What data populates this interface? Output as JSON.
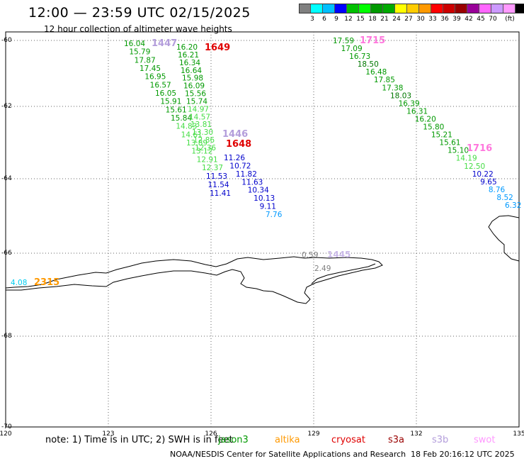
{
  "header": {
    "title": "12:00 — 23:59 UTC 02/15/2025",
    "subtitle": "12 hour collection of altimeter wave heights"
  },
  "colorbar": {
    "unit": "(ft)",
    "colors": [
      "#808080",
      "#00ffff",
      "#00bfff",
      "#0000ff",
      "#00c000",
      "#00ff00",
      "#009900",
      "#00aa00",
      "#ffff00",
      "#ffcc00",
      "#ff9900",
      "#ff0000",
      "#cc0000",
      "#990000",
      "#990099",
      "#ff66ff",
      "#cc99ff",
      "#ff99ff",
      "#000000"
    ],
    "labels": [
      "3",
      "6",
      "9",
      "12",
      "15",
      "18",
      "21",
      "24",
      "27",
      "30",
      "33",
      "36",
      "39",
      "42",
      "45",
      "70"
    ]
  },
  "axes": {
    "lat_labels": [
      "-60",
      "-62",
      "-64",
      "-66",
      "-68",
      "-70"
    ],
    "lon_labels": [
      "120",
      "123",
      "126",
      "129",
      "132",
      "135"
    ]
  },
  "tracks": {
    "track_1447": {
      "label": "1447",
      "color": "#b39ddb",
      "values": [
        "16.04",
        "15.79",
        "17.87",
        "17.45",
        "16.95",
        "16.57",
        "16.05",
        "15.91",
        "15.61",
        "15.84",
        "14.83",
        "14.61",
        "13.89",
        "13.12",
        "12.91",
        "12.37"
      ]
    },
    "track_1649": {
      "label": "1649",
      "color": "#e00000",
      "values": [
        "16.20",
        "16.21",
        "16.34",
        "16.64",
        "15.98",
        "16.09",
        "15.56",
        "15.74",
        "14.97",
        "14.57",
        "13.81",
        "13.30",
        "12.86",
        "12.36"
      ]
    },
    "track_1446": {
      "label": "1446",
      "color": "#b39ddb"
    },
    "track_1648": {
      "label": "1648",
      "color": "#e00000",
      "values": [
        "11.26",
        "10.72",
        "11.82",
        "11.63",
        "10.34",
        "10.13",
        "9.11",
        "7.76"
      ]
    },
    "track_1446b": {
      "values": [
        "11.53",
        "11.54",
        "11.41"
      ]
    },
    "track_1715": {
      "label": "1715",
      "color": "#ff77dd",
      "values": [
        "17.59",
        "17.09",
        "16.73",
        "18.50",
        "16.48",
        "17.85",
        "17.38",
        "18.03",
        "16.39",
        "16.31",
        "16.20",
        "15.80",
        "15.21",
        "15.61",
        "15.10",
        "14.19",
        "12.50",
        "10.22",
        "9.65",
        "8.76",
        "8.52",
        "6.32"
      ]
    },
    "track_1716": {
      "label": "1716",
      "color": "#ff77dd"
    },
    "track_1445": {
      "label": "1445",
      "color": "#c9b8e8",
      "values": [
        "0.59",
        "2.49"
      ]
    },
    "track_2315": {
      "label": "2315",
      "color": "#ff9900",
      "values": [
        "4.08"
      ]
    }
  },
  "footer": {
    "note": "note:  1) Time is in UTC;  2) SWH is in feet",
    "legend": [
      {
        "name": "jason3",
        "color": "#009900"
      },
      {
        "name": "altika",
        "color": "#ff9900"
      },
      {
        "name": "cryosat",
        "color": "#e00000"
      },
      {
        "name": "s3a",
        "color": "#990000"
      },
      {
        "name": "s3b",
        "color": "#b39ddb"
      },
      {
        "name": "swot",
        "color": "#ff99ff"
      }
    ],
    "credit": "NOAA/NESDIS Center for Satellite Applications and Research",
    "generated": "18 Feb 20:16:12 UTC 2025"
  }
}
